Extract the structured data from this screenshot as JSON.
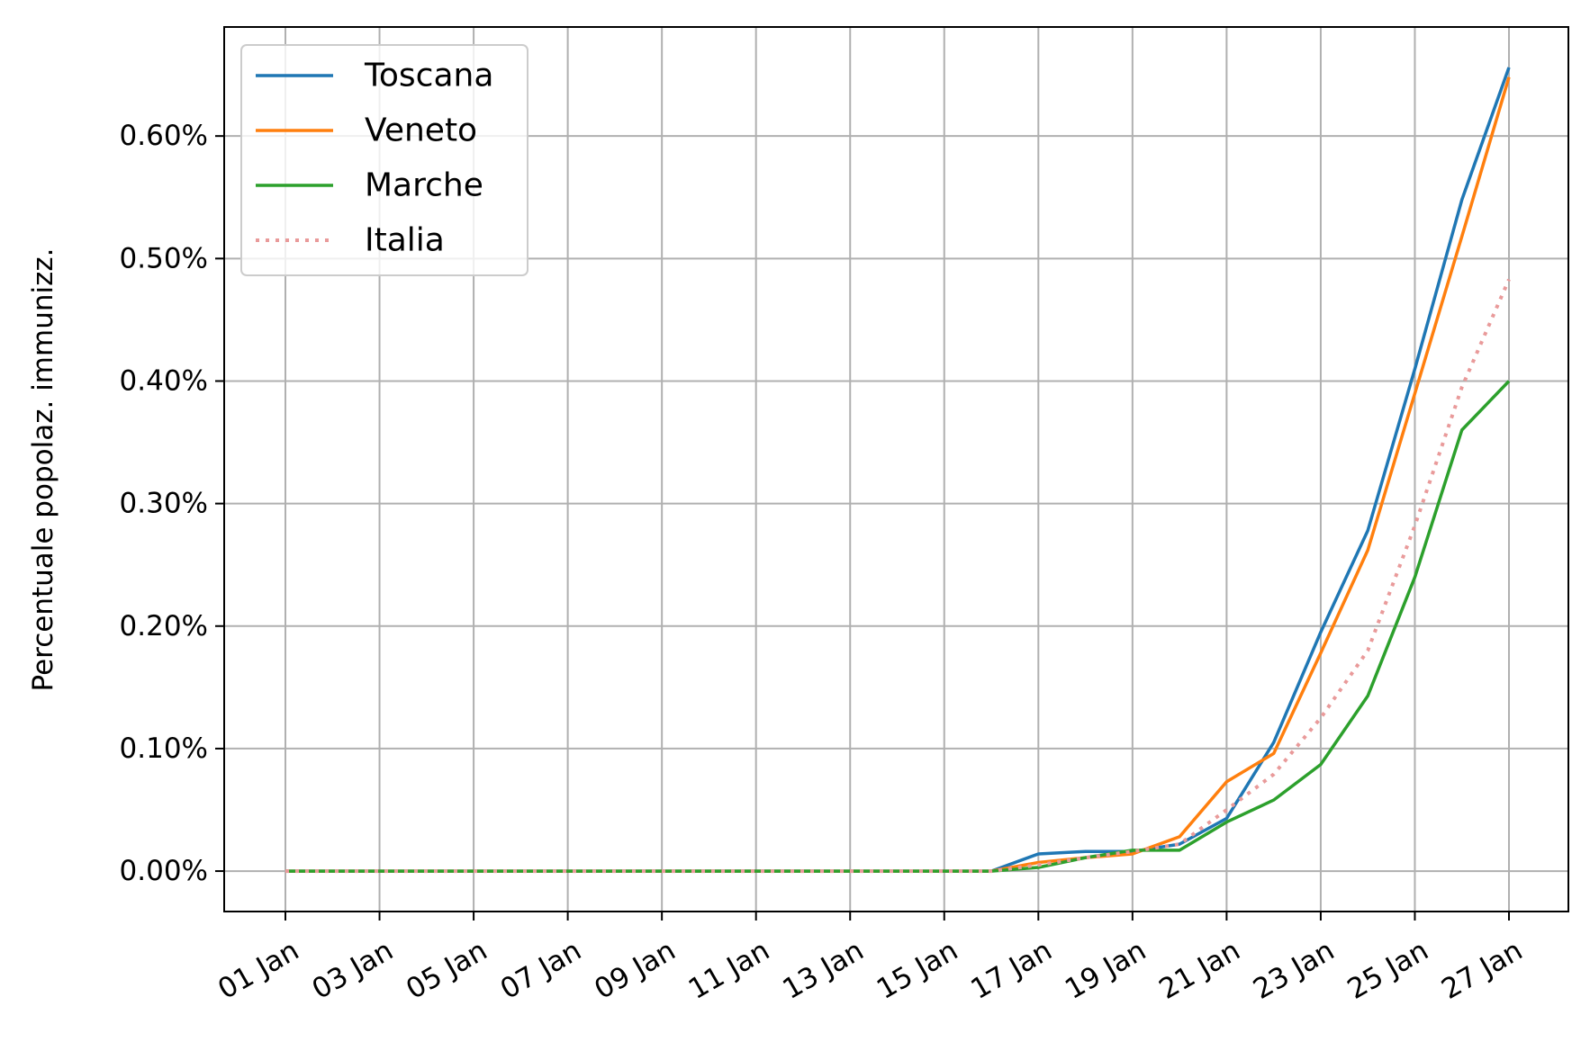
{
  "chart_data": {
    "type": "line",
    "ylabel": "Percentuale popolaz. immunizz.",
    "xlabel": "",
    "x": [
      "01 Jan",
      "02 Jan",
      "03 Jan",
      "04 Jan",
      "05 Jan",
      "06 Jan",
      "07 Jan",
      "08 Jan",
      "09 Jan",
      "10 Jan",
      "11 Jan",
      "12 Jan",
      "13 Jan",
      "14 Jan",
      "15 Jan",
      "16 Jan",
      "17 Jan",
      "18 Jan",
      "19 Jan",
      "20 Jan",
      "21 Jan",
      "22 Jan",
      "23 Jan",
      "24 Jan",
      "25 Jan",
      "26 Jan",
      "27 Jan"
    ],
    "x_tick_labels": [
      "01 Jan",
      "03 Jan",
      "05 Jan",
      "07 Jan",
      "09 Jan",
      "11 Jan",
      "13 Jan",
      "15 Jan",
      "17 Jan",
      "19 Jan",
      "21 Jan",
      "23 Jan",
      "25 Jan",
      "27 Jan"
    ],
    "y_tick_values": [
      0,
      0.1,
      0.2,
      0.3,
      0.4,
      0.5,
      0.6
    ],
    "y_tick_labels": [
      "0.00%",
      "0.10%",
      "0.20%",
      "0.30%",
      "0.40%",
      "0.50%",
      "0.60%"
    ],
    "ylim": [
      -0.033,
      0.689
    ],
    "y_unit": "percent",
    "grid": true,
    "legend_position": "top-left",
    "series": [
      {
        "name": "Toscana",
        "color": "#1f77b4",
        "style": "solid",
        "values": [
          0,
          0,
          0,
          0,
          0,
          0,
          0,
          0,
          0,
          0,
          0,
          0,
          0,
          0,
          0,
          0,
          0.014,
          0.016,
          0.016,
          0.022,
          0.043,
          0.105,
          0.195,
          0.278,
          0.41,
          0.548,
          0.656
        ]
      },
      {
        "name": "Veneto",
        "color": "#ff7f0e",
        "style": "solid",
        "values": [
          0,
          0,
          0,
          0,
          0,
          0,
          0,
          0,
          0,
          0,
          0,
          0,
          0,
          0,
          0,
          0,
          0.007,
          0.011,
          0.014,
          0.028,
          0.073,
          0.096,
          0.178,
          0.262,
          0.39,
          0.518,
          0.648
        ]
      },
      {
        "name": "Marche",
        "color": "#2ca02c",
        "style": "solid",
        "values": [
          0,
          0,
          0,
          0,
          0,
          0,
          0,
          0,
          0,
          0,
          0,
          0,
          0,
          0,
          0,
          0,
          0.003,
          0.011,
          0.017,
          0.017,
          0.04,
          0.058,
          0.087,
          0.143,
          0.24,
          0.36,
          0.4
        ]
      },
      {
        "name": "Italia",
        "color": "#e99a9a",
        "style": "dotted",
        "values": [
          0,
          0,
          0,
          0,
          0,
          0,
          0,
          0,
          0,
          0,
          0,
          0,
          0,
          0,
          0,
          0,
          0.005,
          0.011,
          0.016,
          0.022,
          0.05,
          0.079,
          0.125,
          0.18,
          0.282,
          0.395,
          0.483
        ]
      }
    ]
  }
}
